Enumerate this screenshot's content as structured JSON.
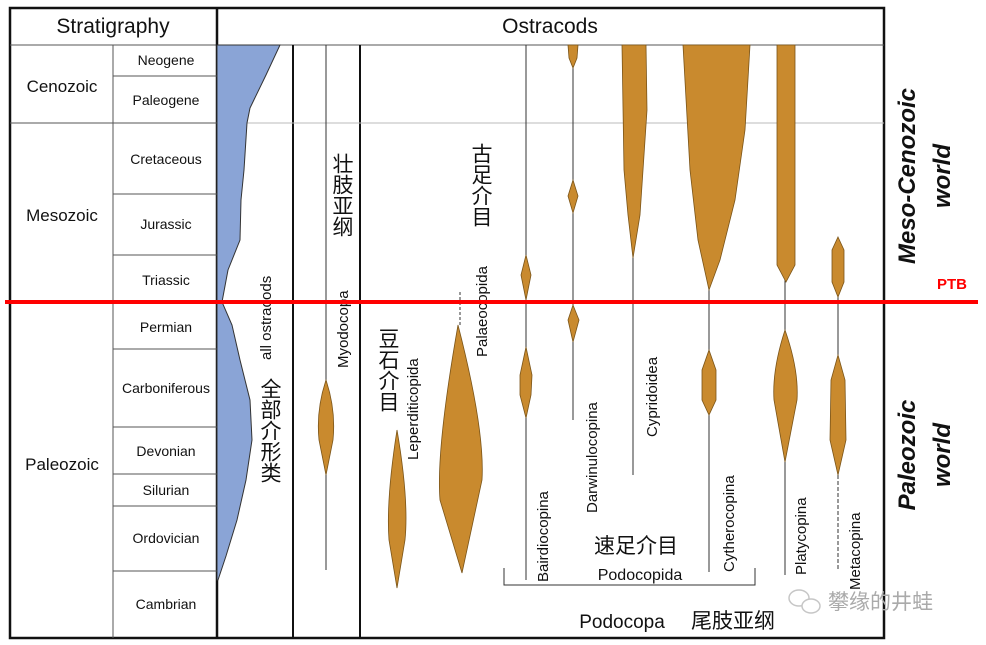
{
  "header": {
    "stratigraphy": "Stratigraphy",
    "ostracods": "Ostracods"
  },
  "eras": [
    "Cenozoic",
    "Mesozoic",
    "Paleozoic"
  ],
  "periods": [
    "Neogene",
    "Paleogene",
    "Cretaceous",
    "Jurassic",
    "Triassic",
    "Permian",
    "Carboniferous",
    "Devonian",
    "Silurian",
    "Ordovician",
    "Cambrian"
  ],
  "groups": {
    "all_ostracods": "all ostracods",
    "all_ostracods_cn": "全部介形类",
    "myodocopa": "Myodocopa",
    "myodocopa_cn": "壮肢亚纲",
    "leperditicopida": "Leperditicopida",
    "leperditicopida_cn": "豆石介目",
    "palaeocopida": "Palaeocopida",
    "palaeocopida_cn": "古足介目",
    "bairdiocopina": "Bairdiocopina",
    "darwinulocopina": "Darwinulocopina",
    "cypridoidea": "Cypridoidea",
    "cytherocopina": "Cytherocopina",
    "platycopina": "Platycopina",
    "metacopina": "Metacopina",
    "podocopida": "Podocopida",
    "podocopida_cn": "速足介目",
    "podocopa": "Podocopa",
    "podocopa_cn": "尾肢亚纲"
  },
  "side_labels": {
    "meso_cenozoic": "Meso-Cenozoic",
    "meso_world": "world",
    "ptb": "PTB",
    "paleozoic": "Paleozoic",
    "paleo_world": "world"
  },
  "watermark": "攀缘的井蛙",
  "colors": {
    "ptb_line": "#ff0000",
    "all_ostracods_fill": "#8aa4d6",
    "range_fill": "#c98a2e"
  }
}
